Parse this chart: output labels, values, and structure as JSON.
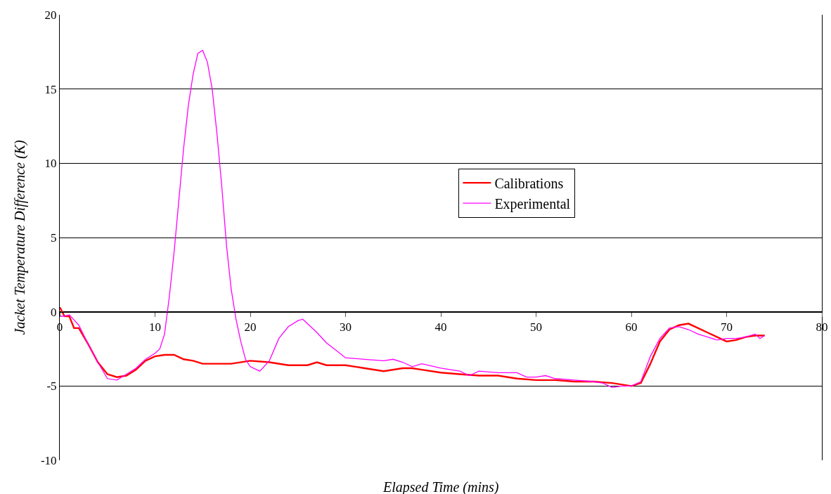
{
  "chart_data": {
    "type": "line",
    "xlabel": "Elapsed Time (mins)",
    "ylabel": "Jacket Temperature Difference (K)",
    "xlim": [
      0,
      80
    ],
    "xticks": [
      0,
      10,
      20,
      30,
      40,
      50,
      60,
      70,
      80
    ],
    "ylim": [
      -10,
      20
    ],
    "yticks": [
      -10,
      -5,
      0,
      5,
      10,
      15,
      20
    ],
    "grid": "y",
    "legend": "center",
    "marker": "none",
    "line_style": "solid",
    "series": [
      {
        "name": "Calibrations",
        "color": "#ff0000",
        "x": [
          0,
          0.5,
          1,
          1.5,
          2,
          3,
          4,
          5,
          6,
          7,
          8,
          9,
          10,
          11,
          12,
          13,
          14,
          15,
          16,
          17,
          18,
          20,
          22,
          24,
          26,
          27,
          28,
          30,
          32,
          34,
          36,
          37,
          38,
          40,
          42,
          44,
          46,
          48,
          50,
          52,
          54,
          56,
          58,
          60,
          61,
          62,
          63,
          64,
          65,
          66,
          67,
          68,
          69,
          70,
          71,
          72,
          73,
          74
        ],
        "values": [
          0.3,
          -0.3,
          -0.3,
          -1.1,
          -1.1,
          -2.2,
          -3.4,
          -4.2,
          -4.4,
          -4.3,
          -3.9,
          -3.3,
          -3.0,
          -2.9,
          -2.9,
          -3.2,
          -3.3,
          -3.5,
          -3.5,
          -3.5,
          -3.5,
          -3.3,
          -3.4,
          -3.6,
          -3.6,
          -3.4,
          -3.6,
          -3.6,
          -3.8,
          -4.0,
          -3.8,
          -3.8,
          -3.9,
          -4.1,
          -4.2,
          -4.3,
          -4.3,
          -4.5,
          -4.6,
          -4.6,
          -4.7,
          -4.7,
          -4.8,
          -5.0,
          -4.8,
          -3.5,
          -2.0,
          -1.2,
          -0.9,
          -0.8,
          -1.1,
          -1.4,
          -1.7,
          -2.0,
          -1.9,
          -1.7,
          -1.6,
          -1.6
        ]
      },
      {
        "name": "Experimental",
        "color": "#ff00ff",
        "x": [
          0,
          0.5,
          1,
          2,
          3,
          4,
          5,
          6,
          7,
          8,
          9,
          10,
          10.5,
          11,
          11.5,
          12,
          12.5,
          13,
          13.5,
          14,
          14.5,
          15,
          15.5,
          16,
          16.5,
          17,
          17.5,
          18,
          18.5,
          19,
          19.5,
          20,
          21,
          22,
          23,
          24,
          25,
          25.5,
          26,
          27,
          28,
          29,
          30,
          32,
          34,
          35,
          36,
          37,
          38,
          40,
          42,
          43,
          44,
          46,
          48,
          49,
          50,
          51,
          52,
          54,
          56,
          57,
          58,
          59,
          60,
          61,
          62,
          63,
          64,
          65,
          66,
          67,
          68,
          69,
          70,
          71,
          72,
          73,
          73.5,
          74
        ],
        "values": [
          -0.3,
          -0.3,
          -0.2,
          -0.9,
          -2.2,
          -3.4,
          -4.5,
          -4.6,
          -4.2,
          -3.8,
          -3.2,
          -2.8,
          -2.5,
          -1.5,
          1,
          4,
          7.5,
          11,
          13.9,
          16,
          17.4,
          17.6,
          16.8,
          15,
          12,
          8.5,
          4.5,
          1.5,
          -0.5,
          -2,
          -3.2,
          -3.7,
          -4.0,
          -3.3,
          -1.8,
          -1.0,
          -0.6,
          -0.5,
          -0.8,
          -1.4,
          -2.1,
          -2.6,
          -3.1,
          -3.2,
          -3.3,
          -3.2,
          -3.4,
          -3.7,
          -3.5,
          -3.8,
          -4.0,
          -4.3,
          -4.0,
          -4.1,
          -4.1,
          -4.4,
          -4.4,
          -4.3,
          -4.5,
          -4.6,
          -4.7,
          -4.8,
          -5.1,
          -5.0,
          -5.0,
          -4.7,
          -3.0,
          -1.8,
          -1.1,
          -1.0,
          -1.2,
          -1.5,
          -1.7,
          -1.9,
          -1.8,
          -1.8,
          -1.7,
          -1.5,
          -1.8,
          -1.6
        ]
      }
    ]
  }
}
